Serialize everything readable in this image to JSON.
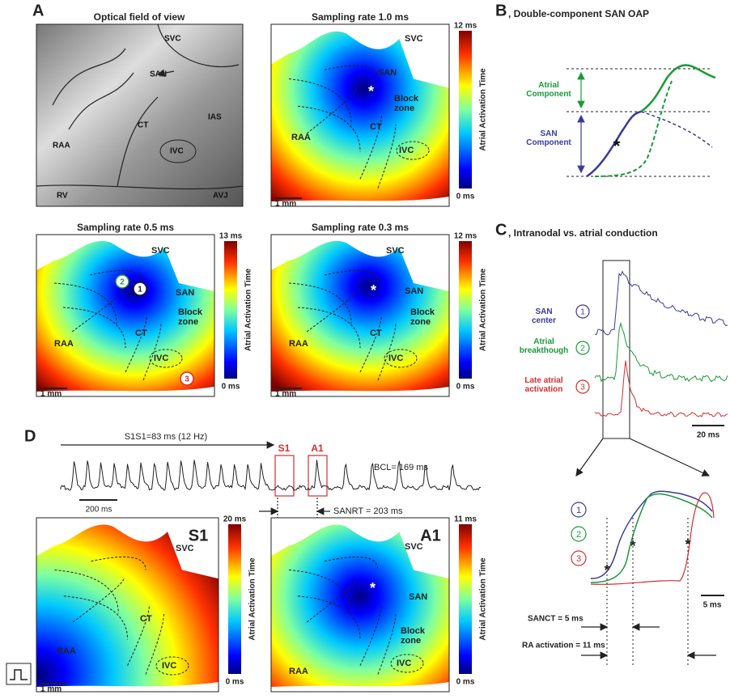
{
  "panel_a": {
    "label": "A",
    "optical": {
      "title": "Optical field of view",
      "labels": [
        "SVC",
        "SAN",
        "CT",
        "IAS",
        "RAA",
        "IVC",
        "RV",
        "AVJ"
      ]
    },
    "maps": [
      {
        "title": "Sampling rate 1.0 ms",
        "labels": [
          "SVC",
          "SAN",
          "*",
          "Block zone",
          "CT",
          "RAA",
          "IVC"
        ],
        "scale": "1 mm",
        "max": "12 ms",
        "min": "0 ms",
        "axis": "Atrial Activation Time"
      },
      {
        "title": "Sampling rate 0.5 ms",
        "labels": [
          "SVC",
          "SAN",
          "Block zone",
          "CT",
          "RAA",
          "IVC"
        ],
        "markers": [
          "1",
          "2",
          "3"
        ],
        "scale": "1 mm",
        "max": "13 ms",
        "min": "0 ms",
        "axis": "Atrial Activation Time"
      },
      {
        "title": "Sampling rate 0.3 ms",
        "labels": [
          "SVC",
          "*",
          "SAN",
          "Block zone",
          "CT",
          "RAA",
          "IVC"
        ],
        "scale": "1 mm",
        "max": "12 ms",
        "min": "0 ms",
        "axis": "Atrial Activation Time"
      }
    ]
  },
  "panel_b": {
    "label": "B",
    "title": ", Double-component SAN OAP",
    "atrial": "Atrial Component",
    "san": "SAN Component",
    "star": "*"
  },
  "panel_c": {
    "label": "C",
    "title": ", Intranodal vs. atrial conduction",
    "traces": [
      {
        "name": "SAN center",
        "marker": "1"
      },
      {
        "name": "Atrial breakthough",
        "marker": "2"
      },
      {
        "name": "Late atrial activation",
        "marker": "3"
      }
    ],
    "scale": "20 ms",
    "zoom": {
      "markers": [
        "1",
        "2",
        "3"
      ],
      "stars": [
        "*",
        "*",
        "*"
      ],
      "scale": "5 ms",
      "sanct": "SANCT = 5 ms",
      "ra": "RA activation = 11 ms"
    }
  },
  "panel_d": {
    "label": "D",
    "s1s1": "S1S1=83 ms (12 Hz)",
    "s1": "S1",
    "a1": "A1",
    "bcl": "BCL= 169 ms",
    "scale": "200 ms",
    "sanrt": "SANRT = 203 ms",
    "maps": [
      {
        "title": "S1",
        "labels": [
          "SVC",
          "RAA",
          "CT",
          "IVC"
        ],
        "scale": "1 mm",
        "max": "20 ms",
        "min": "0 ms",
        "axis": "Atrial Activation Time"
      },
      {
        "title": "A1",
        "labels": [
          "SVC",
          "*",
          "SAN",
          "Block zone",
          "RAA",
          "IVC"
        ],
        "max": "11 ms",
        "min": "0 ms",
        "axis": "Atrial Activation Time"
      }
    ]
  }
}
